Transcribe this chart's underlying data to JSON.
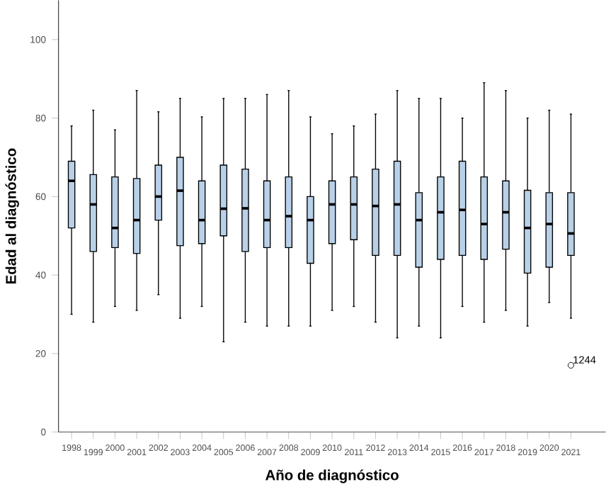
{
  "chart_data": {
    "type": "box",
    "xlabel": "Año de diagnóstico",
    "ylabel": "Edad al diagnóstico",
    "categories": [
      "1998",
      "1999",
      "2000",
      "2001",
      "2002",
      "2003",
      "2004",
      "2005",
      "2006",
      "2007",
      "2008",
      "2009",
      "2010",
      "2011",
      "2012",
      "2013",
      "2014",
      "2015",
      "2016",
      "2017",
      "2018",
      "2019",
      "2020",
      "2021"
    ],
    "color": "#b8d0e8",
    "ylim": [
      0,
      110
    ],
    "yticks": [
      0,
      20,
      40,
      60,
      80,
      100
    ],
    "grid": false,
    "boxes": [
      {
        "low": 30,
        "q1": 52,
        "median": 64,
        "q3": 69,
        "high": 78
      },
      {
        "low": 28,
        "q1": 46,
        "median": 58,
        "q3": 65.6,
        "high": 82
      },
      {
        "low": 32,
        "q1": 47,
        "median": 52,
        "q3": 65,
        "high": 77
      },
      {
        "low": 31,
        "q1": 45.5,
        "median": 54,
        "q3": 64.6,
        "high": 87
      },
      {
        "low": 35,
        "q1": 54,
        "median": 60,
        "q3": 68,
        "high": 81.6
      },
      {
        "low": 29,
        "q1": 47.5,
        "median": 61.5,
        "q3": 70,
        "high": 85
      },
      {
        "low": 32,
        "q1": 48,
        "median": 54,
        "q3": 64,
        "high": 80.3
      },
      {
        "low": 23,
        "q1": 50,
        "median": 56.9,
        "q3": 68,
        "high": 85
      },
      {
        "low": 28,
        "q1": 46,
        "median": 57,
        "q3": 67,
        "high": 85
      },
      {
        "low": 27,
        "q1": 47,
        "median": 54,
        "q3": 64,
        "high": 86
      },
      {
        "low": 27,
        "q1": 47,
        "median": 55,
        "q3": 65,
        "high": 87
      },
      {
        "low": 27,
        "q1": 43,
        "median": 54,
        "q3": 60,
        "high": 80.3
      },
      {
        "low": 31,
        "q1": 48,
        "median": 58,
        "q3": 64,
        "high": 76
      },
      {
        "low": 32,
        "q1": 49,
        "median": 58,
        "q3": 65,
        "high": 78
      },
      {
        "low": 28,
        "q1": 45,
        "median": 57.6,
        "q3": 67,
        "high": 81
      },
      {
        "low": 24,
        "q1": 45,
        "median": 58,
        "q3": 69,
        "high": 87
      },
      {
        "low": 27,
        "q1": 42,
        "median": 54,
        "q3": 61,
        "high": 85
      },
      {
        "low": 24,
        "q1": 44,
        "median": 56,
        "q3": 65,
        "high": 85
      },
      {
        "low": 32,
        "q1": 45,
        "median": 56.6,
        "q3": 69,
        "high": 80
      },
      {
        "low": 28,
        "q1": 44,
        "median": 53,
        "q3": 65,
        "high": 89
      },
      {
        "low": 31,
        "q1": 46.6,
        "median": 56,
        "q3": 64,
        "high": 87
      },
      {
        "low": 27,
        "q1": 40.5,
        "median": 52,
        "q3": 61.6,
        "high": 80
      },
      {
        "low": 33,
        "q1": 42,
        "median": 53,
        "q3": 61,
        "high": 82
      },
      {
        "low": 29,
        "q1": 45,
        "median": 50.6,
        "q3": 61,
        "high": 81,
        "outliers": [
          17
        ]
      }
    ],
    "annotations": [
      "1244"
    ]
  }
}
